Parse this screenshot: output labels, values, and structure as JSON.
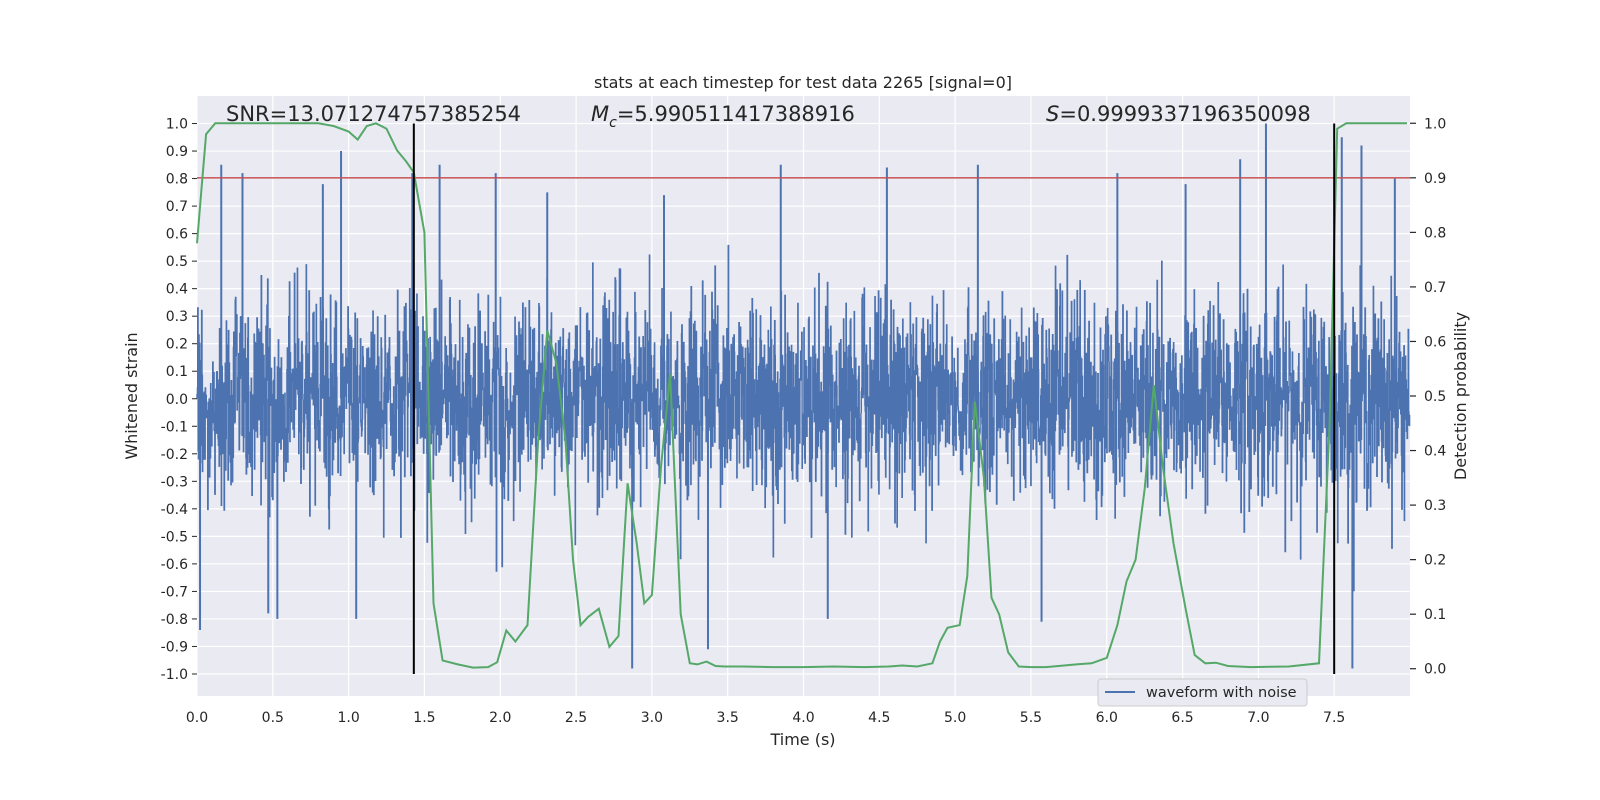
{
  "chart_data": {
    "type": "line",
    "title": "stats at each timestep for test data 2265 [signal=0]",
    "xlabel": "Time (s)",
    "ylabel": "Whitened strain",
    "y2label": "Detection probability",
    "xlim": [
      0,
      8
    ],
    "ylim": [
      -1.08,
      1.1
    ],
    "y2lim": [
      -0.05,
      1.05
    ],
    "x_ticks": [
      "0.0",
      "0.5",
      "1.0",
      "1.5",
      "2.0",
      "2.5",
      "3.0",
      "3.5",
      "4.0",
      "4.5",
      "5.0",
      "5.5",
      "6.0",
      "6.5",
      "7.0",
      "7.5"
    ],
    "y_ticks": [
      "-1.0",
      "-0.9",
      "-0.8",
      "-0.7",
      "-0.6",
      "-0.5",
      "-0.4",
      "-0.3",
      "-0.2",
      "-0.1",
      "0.0",
      "0.1",
      "0.2",
      "0.3",
      "0.4",
      "0.5",
      "0.6",
      "0.7",
      "0.8",
      "0.9",
      "1.0"
    ],
    "y2_ticks": [
      "0.0",
      "0.1",
      "0.2",
      "0.3",
      "0.4",
      "0.5",
      "0.6",
      "0.7",
      "0.8",
      "0.9",
      "1.0"
    ],
    "grid": true,
    "legend_position": "lower-right",
    "annotations": {
      "snr_text": "SNR=13.071274757385254",
      "mc_symbol": "M",
      "mc_sub": "c",
      "mc_value": "=5.990511417388916",
      "s_symbol": "S",
      "s_value": "=0.9999337196350098"
    },
    "threshold": {
      "value": 0.9,
      "axis": "right",
      "color": "#c44e52"
    },
    "vertical_lines": [
      1.43,
      7.5
    ],
    "waveform": {
      "name": "waveform with noise",
      "color": "#4c72b0",
      "typical_amplitude": 0.3,
      "peak_amplitude": 1.0,
      "spikes": [
        {
          "x": 0.02,
          "y": -0.84
        },
        {
          "x": 0.16,
          "y": 0.85
        },
        {
          "x": 0.3,
          "y": 0.82
        },
        {
          "x": 0.47,
          "y": -0.78
        },
        {
          "x": 0.53,
          "y": -0.8
        },
        {
          "x": 0.83,
          "y": 0.78
        },
        {
          "x": 0.95,
          "y": 0.9
        },
        {
          "x": 1.05,
          "y": -0.8
        },
        {
          "x": 1.42,
          "y": 0.82
        },
        {
          "x": 1.6,
          "y": 0.85
        },
        {
          "x": 1.97,
          "y": 0.82
        },
        {
          "x": 2.31,
          "y": 0.75
        },
        {
          "x": 2.87,
          "y": -0.98
        },
        {
          "x": 3.08,
          "y": 0.74
        },
        {
          "x": 3.37,
          "y": -0.91
        },
        {
          "x": 3.85,
          "y": 0.85
        },
        {
          "x": 4.16,
          "y": -0.8
        },
        {
          "x": 4.55,
          "y": 0.84
        },
        {
          "x": 5.15,
          "y": 0.85
        },
        {
          "x": 5.57,
          "y": -0.81
        },
        {
          "x": 6.07,
          "y": 0.82
        },
        {
          "x": 6.52,
          "y": 0.78
        },
        {
          "x": 6.88,
          "y": 0.87
        },
        {
          "x": 7.05,
          "y": 1.0
        },
        {
          "x": 7.55,
          "y": 0.95
        },
        {
          "x": 7.62,
          "y": -0.98
        },
        {
          "x": 7.68,
          "y": 0.92
        },
        {
          "x": 7.9,
          "y": 0.8
        }
      ]
    },
    "detection_probability": {
      "color": "#55a868",
      "x": [
        0.0,
        0.03,
        0.06,
        0.12,
        0.2,
        0.4,
        0.6,
        0.8,
        0.9,
        1.0,
        1.06,
        1.12,
        1.18,
        1.25,
        1.32,
        1.38,
        1.43,
        1.5,
        1.56,
        1.62,
        1.72,
        1.82,
        1.92,
        1.98,
        2.04,
        2.1,
        2.18,
        2.25,
        2.31,
        2.37,
        2.43,
        2.48,
        2.53,
        2.58,
        2.65,
        2.72,
        2.78,
        2.84,
        2.9,
        2.95,
        3.0,
        3.06,
        3.12,
        3.19,
        3.25,
        3.3,
        3.36,
        3.42,
        3.48,
        3.6,
        3.8,
        4.0,
        4.2,
        4.4,
        4.56,
        4.65,
        4.75,
        4.85,
        4.9,
        4.95,
        5.03,
        5.08,
        5.13,
        5.19,
        5.24,
        5.29,
        5.35,
        5.42,
        5.5,
        5.6,
        5.8,
        5.9,
        6.0,
        6.07,
        6.13,
        6.19,
        6.25,
        6.31,
        6.37,
        6.44,
        6.52,
        6.58,
        6.65,
        6.72,
        6.8,
        6.95,
        7.2,
        7.4,
        7.47,
        7.52,
        7.58,
        7.64,
        7.7,
        7.8,
        7.98
      ],
      "y": [
        0.78,
        0.88,
        0.98,
        1.0,
        1.0,
        1.0,
        1.0,
        1.0,
        0.995,
        0.985,
        0.97,
        0.995,
        1.0,
        0.99,
        0.95,
        0.93,
        0.91,
        0.8,
        0.12,
        0.015,
        0.008,
        0.002,
        0.003,
        0.012,
        0.07,
        0.05,
        0.08,
        0.42,
        0.62,
        0.56,
        0.42,
        0.2,
        0.08,
        0.095,
        0.11,
        0.04,
        0.06,
        0.34,
        0.23,
        0.12,
        0.135,
        0.37,
        0.54,
        0.1,
        0.01,
        0.008,
        0.013,
        0.005,
        0.004,
        0.004,
        0.003,
        0.003,
        0.004,
        0.003,
        0.004,
        0.006,
        0.004,
        0.01,
        0.05,
        0.075,
        0.08,
        0.17,
        0.49,
        0.35,
        0.13,
        0.1,
        0.03,
        0.004,
        0.003,
        0.003,
        0.008,
        0.01,
        0.02,
        0.08,
        0.16,
        0.2,
        0.33,
        0.52,
        0.37,
        0.23,
        0.11,
        0.025,
        0.01,
        0.011,
        0.005,
        0.003,
        0.004,
        0.01,
        0.45,
        0.99,
        1.0,
        1.0,
        1.0,
        1.0,
        1.0
      ]
    }
  }
}
